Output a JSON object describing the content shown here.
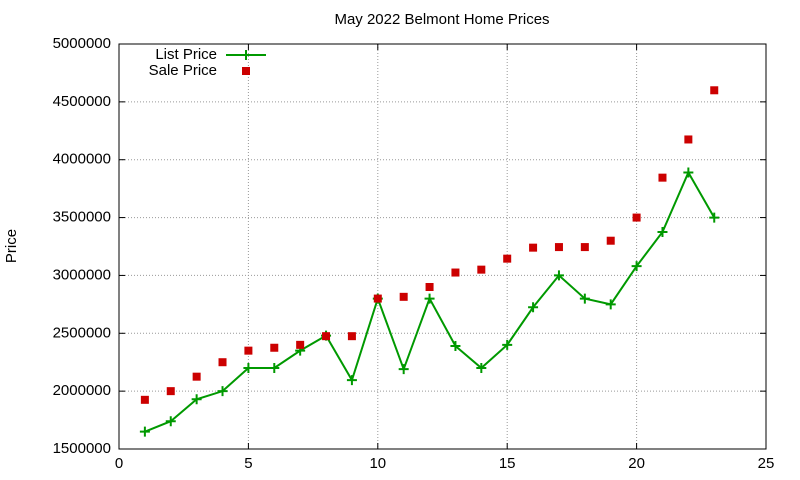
{
  "chart_data": {
    "type": "line",
    "title": "May 2022 Belmont Home Prices",
    "y_label": "Price",
    "x": [
      1,
      2,
      3,
      4,
      5,
      6,
      7,
      8,
      9,
      10,
      11,
      12,
      13,
      14,
      15,
      16,
      17,
      18,
      19,
      20,
      21,
      22,
      23
    ],
    "series": [
      {
        "name": "List Price",
        "color": "#009900",
        "line": true,
        "marker": "plus",
        "values": [
          1650000,
          1740000,
          1930000,
          2000000,
          2200000,
          2200000,
          2350000,
          2480000,
          2095000,
          2800000,
          2190000,
          2800000,
          2390000,
          2200000,
          2400000,
          2725000,
          3000000,
          2800000,
          2750000,
          3080000,
          3375000,
          3890000,
          3500000
        ]
      },
      {
        "name": "Sale Price",
        "color": "#cc0000",
        "line": false,
        "marker": "square",
        "values": [
          1925000,
          2000000,
          2125000,
          2250000,
          2350000,
          2375000,
          2400000,
          2475000,
          2475000,
          2800000,
          2815000,
          2900000,
          3025000,
          3050000,
          3145000,
          3240000,
          3245000,
          3245000,
          3300000,
          3500000,
          3845000,
          4175000,
          4600000
        ]
      }
    ],
    "xlim": [
      0,
      25
    ],
    "xticks": [
      0,
      5,
      10,
      15,
      20,
      25
    ],
    "ylim": [
      1500000,
      5000000
    ],
    "yticks": [
      1500000,
      2000000,
      2500000,
      3000000,
      3500000,
      4000000,
      4500000,
      5000000
    ],
    "grid": true,
    "legend": "top-left"
  }
}
